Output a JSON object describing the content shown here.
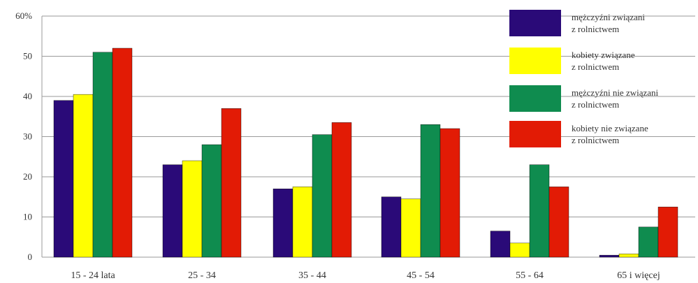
{
  "chart_data": {
    "type": "bar",
    "categories": [
      "15 - 24 lata",
      "25 - 34",
      "35 - 44",
      "45 - 54",
      "55 - 64",
      "65 i więcej"
    ],
    "series": [
      {
        "name": "mężczyźni związani z rolnictwem",
        "name_lines": [
          "mężczyźni związani",
          "z rolnictwem"
        ],
        "color": "#2a0a78",
        "values": [
          39,
          23,
          17,
          15,
          6.5,
          0.5
        ]
      },
      {
        "name": "kobiety związane z rolnictwem",
        "name_lines": [
          "kobiety związane",
          "z rolnictwem"
        ],
        "color": "#ffff00",
        "values": [
          40.5,
          24,
          17.5,
          14.5,
          3.5,
          0.8
        ]
      },
      {
        "name": "mężczyźni nie związani z rolnictwem",
        "name_lines": [
          "mężczyźni nie związani",
          "z rolnictwem"
        ],
        "color": "#0f8c4f",
        "values": [
          51,
          28,
          30.5,
          33,
          23,
          7.5
        ]
      },
      {
        "name": "kobiety nie związane z rolnictwem",
        "name_lines": [
          "kobiety nie związane",
          "z rolnictwem"
        ],
        "color": "#e21b05",
        "values": [
          52,
          37,
          33.5,
          32,
          17.5,
          12.5
        ]
      }
    ],
    "yticks": [
      "0",
      "10",
      "20",
      "30",
      "40",
      "50",
      "60%"
    ],
    "ylim": [
      0,
      60
    ],
    "grid": true,
    "legend": "top-right",
    "title": "",
    "xlabel": "",
    "ylabel": ""
  }
}
